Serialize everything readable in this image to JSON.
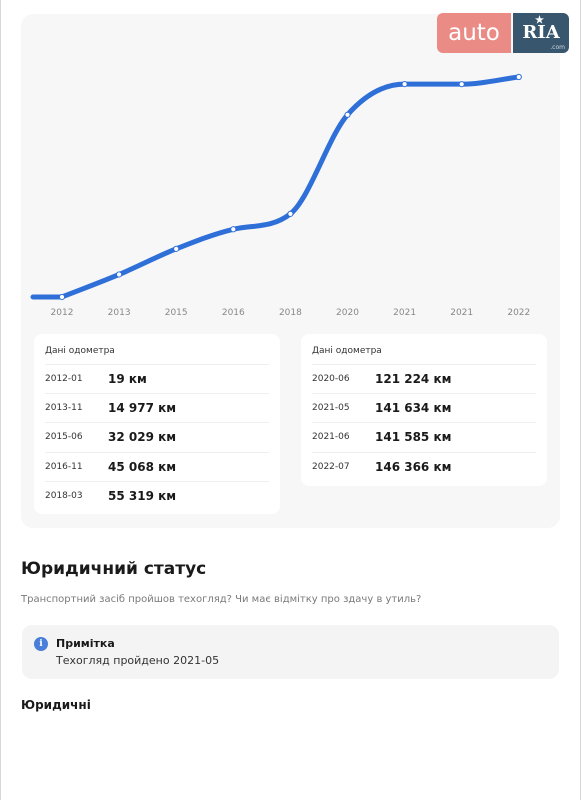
{
  "logo": {
    "auto": "auto",
    "ria": "RIA",
    "com": ".com"
  },
  "chart_data": {
    "type": "line",
    "x": [
      "2012-01",
      "2013-11",
      "2015-06",
      "2016-11",
      "2018-03",
      "2020-06",
      "2021-05",
      "2021-06",
      "2022-07"
    ],
    "values": [
      19,
      14977,
      32029,
      45068,
      55319,
      121224,
      141634,
      141585,
      146366
    ],
    "tick_labels": [
      "2012",
      "2013",
      "2015",
      "2016",
      "2018",
      "2020",
      "2021",
      "2021",
      "2022"
    ],
    "unit": "км",
    "color": "#2f6fd8",
    "grid": false
  },
  "odometer": {
    "left": {
      "title": "Дані одометра",
      "rows": [
        {
          "date": "2012-01",
          "value": "19 км"
        },
        {
          "date": "2013-11",
          "value": "14 977 км"
        },
        {
          "date": "2015-06",
          "value": "32 029 км"
        },
        {
          "date": "2016-11",
          "value": "45 068 км"
        },
        {
          "date": "2018-03",
          "value": "55 319 км"
        }
      ]
    },
    "right": {
      "title": "Дані одометра",
      "rows": [
        {
          "date": "2020-06",
          "value": "121 224 км"
        },
        {
          "date": "2021-05",
          "value": "141 634 км"
        },
        {
          "date": "2021-06",
          "value": "141 585 км"
        },
        {
          "date": "2022-07",
          "value": "146 366 км"
        }
      ]
    }
  },
  "legal": {
    "title": "Юридичний статус",
    "subtitle": "Транспортний засіб пройшов техогляд? Чи має відмітку про здачу в утиль?",
    "note": {
      "icon": "info-icon",
      "icon_glyph": "i",
      "title": "Примітка",
      "text": "Техогляд пройдено 2021-05"
    },
    "section": "Юридичні"
  },
  "colors": {
    "accent": "#2f6fd8",
    "info": "#4a7fd9",
    "logo_auto": "#ea8b86",
    "logo_ria": "#38576f"
  }
}
